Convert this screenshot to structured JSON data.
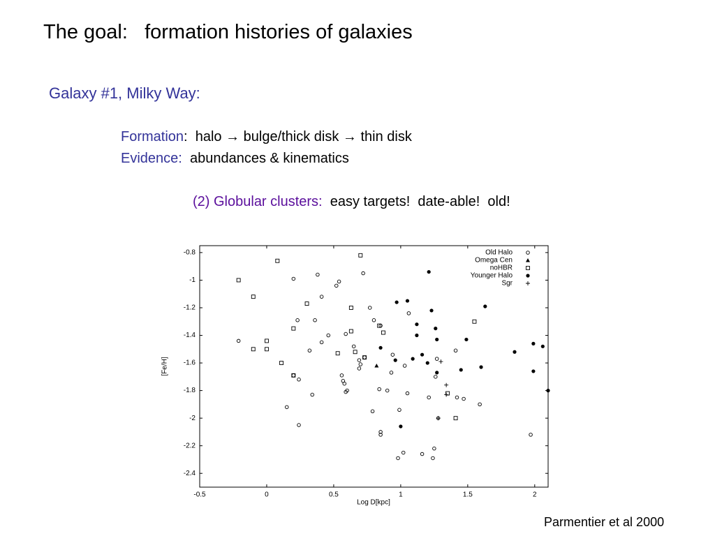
{
  "slide": {
    "title": "The goal:   formation histories of galaxies",
    "subtitle": "Galaxy #1, Milky Way:",
    "formation_label": "Formation",
    "formation_text": ":  halo → bulge/thick disk → thin disk",
    "evidence_label": "Evidence:",
    "evidence_text": "abundances & kinematics",
    "clusters_label": "(2) Globular clusters:",
    "clusters_text": "easy targets!  date-able!  old!",
    "citation": "Parmentier et al 2000"
  },
  "chart_data": {
    "type": "scatter",
    "x_label": "Log D[kpc]",
    "y_label": "[Fe/H]",
    "xlim": [
      -0.5,
      2.1
    ],
    "ylim": [
      -2.5,
      -0.75
    ],
    "xticks": [
      -0.5,
      0,
      0.5,
      1,
      1.5,
      2
    ],
    "yticks": [
      -0.8,
      -1,
      -1.2,
      -1.4,
      -1.6,
      -1.8,
      -2,
      -2.2,
      -2.4
    ],
    "legend": "upper-right",
    "series": [
      {
        "name": "Old Halo",
        "color": "#000000",
        "marker": "circle-open",
        "x": [
          -0.21,
          0.2,
          0.38,
          0.41,
          0.23,
          0.36,
          0.32,
          0.41,
          0.46,
          0.52,
          0.54,
          0.72,
          0.77,
          0.8,
          0.85,
          1.06,
          0.59,
          0.65,
          0.69,
          0.7,
          0.69,
          0.73,
          0.56,
          0.57,
          0.58,
          0.59,
          0.6,
          0.24,
          0.2,
          0.34,
          0.15,
          0.24,
          0.79,
          0.84,
          0.9,
          0.93,
          0.94,
          1.03,
          1.05,
          0.99,
          0.85,
          0.85,
          0.98,
          1.02,
          1.16,
          1.24,
          1.25,
          1.21,
          1.26,
          1.27,
          1.28,
          1.41,
          1.42,
          1.47,
          1.59,
          1.97
        ],
        "values": [
          -1.44,
          -0.99,
          -0.96,
          -1.12,
          -1.29,
          -1.29,
          -1.51,
          -1.45,
          -1.4,
          -1.04,
          -1.01,
          -0.95,
          -1.2,
          -1.29,
          -1.33,
          -1.24,
          -1.39,
          -1.48,
          -1.58,
          -1.61,
          -1.64,
          -1.56,
          -1.69,
          -1.73,
          -1.75,
          -1.81,
          -1.8,
          -1.72,
          -1.69,
          -1.83,
          -1.92,
          -2.05,
          -1.95,
          -1.79,
          -1.8,
          -1.67,
          -1.54,
          -1.62,
          -1.82,
          -1.94,
          -2.1,
          -2.12,
          -2.29,
          -2.25,
          -2.26,
          -2.29,
          -2.22,
          -1.85,
          -1.7,
          -1.57,
          -2,
          -1.51,
          -1.85,
          -1.86,
          -1.9,
          -2.12
        ]
      },
      {
        "name": "Omega Cen",
        "color": "#000000",
        "marker": "triangle",
        "x": [
          0.82
        ],
        "values": [
          -1.62
        ]
      },
      {
        "name": "noHBR",
        "color": "#000000",
        "marker": "square-open",
        "x": [
          -0.21,
          -0.1,
          0.08,
          0.3,
          0.2,
          0,
          0,
          -0.1,
          0.11,
          0.2,
          0.7,
          0.63,
          0.63,
          0.66,
          0.53,
          0.73,
          0.84,
          0.87,
          1.55,
          1.35,
          1.41
        ],
        "values": [
          -1,
          -1.12,
          -0.86,
          -1.17,
          -1.35,
          -1.44,
          -1.5,
          -1.5,
          -1.6,
          -1.69,
          -0.82,
          -1.2,
          -1.37,
          -1.52,
          -1.53,
          -1.56,
          -1.33,
          -1.38,
          -1.3,
          -1.82,
          -2
        ]
      },
      {
        "name": "Younger Halo",
        "color": "#000000",
        "marker": "circle-filled",
        "x": [
          1.21,
          0.97,
          1.05,
          1.23,
          1.12,
          1.12,
          1.26,
          1.27,
          1.63,
          1.49,
          0.85,
          0.96,
          1.09,
          1.16,
          1.2,
          1.27,
          1.45,
          1.6,
          1.85,
          1.99,
          2.06,
          1.99,
          2.1,
          1
        ],
        "values": [
          -0.94,
          -1.16,
          -1.15,
          -1.22,
          -1.32,
          -1.4,
          -1.35,
          -1.43,
          -1.19,
          -1.43,
          -1.49,
          -1.58,
          -1.57,
          -1.54,
          -1.6,
          -1.67,
          -1.65,
          -1.63,
          -1.52,
          -1.46,
          -1.48,
          -1.66,
          -1.8,
          -2.06
        ]
      },
      {
        "name": "Sgr",
        "color": "#000000",
        "marker": "plus",
        "x": [
          1.3,
          1.34,
          1.34,
          1.28
        ],
        "values": [
          -1.59,
          -1.76,
          -1.83,
          -2
        ]
      }
    ]
  }
}
